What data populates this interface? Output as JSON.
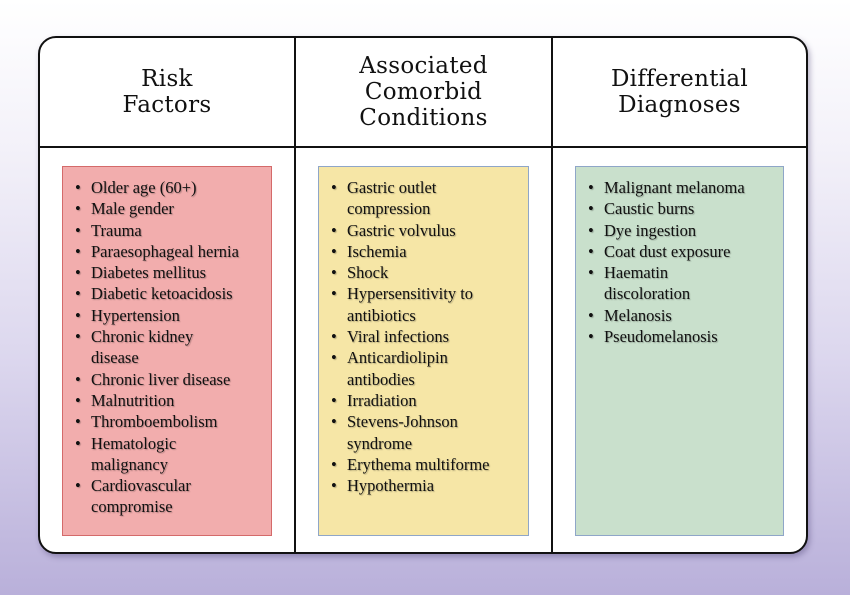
{
  "columns": [
    {
      "title": "Risk\nFactors",
      "items": [
        "Older age (60+)",
        "Male gender",
        "Trauma",
        "Paraesophageal hernia",
        "Diabetes mellitus",
        "Diabetic ketoacidosis",
        "Hypertension",
        "Chronic kidney\n disease",
        "Chronic liver disease",
        "Malnutrition",
        "Thromboembolism",
        "Hematologic\n malignancy",
        "Cardiovascular\n compromise"
      ]
    },
    {
      "title": "Associated\nComorbid\nConditions",
      "items": [
        "Gastric outlet\n compression",
        "Gastric volvulus",
        "Ischemia",
        "Shock",
        "Hypersensitivity to\n antibiotics",
        "Viral infections",
        "Anticardiolipin\n antibodies",
        "Irradiation",
        "Stevens-Johnson\n syndrome",
        "Erythema multiforme",
        "Hypothermia"
      ]
    },
    {
      "title": "Differential\nDiagnoses",
      "items": [
        "Malignant melanoma",
        "Caustic burns",
        "Dye ingestion",
        "Coat dust exposure",
        "Haematin\n discoloration",
        "Melanosis",
        "Pseudomelanosis"
      ]
    }
  ],
  "colors": {
    "risk_box": "#f2adad",
    "comorbid_box": "#f6e6a6",
    "differential_box": "#c9e0cc",
    "border": "#111111"
  }
}
